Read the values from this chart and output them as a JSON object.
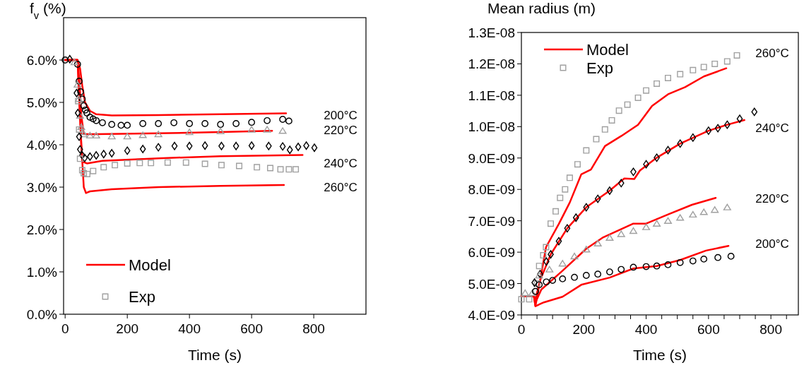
{
  "chart_data": [
    {
      "type": "scatter",
      "ylabel": "f$_{v}$ (%)",
      "xlabel": "Time (s)",
      "xlim": [
        -5,
        968
      ],
      "ylim": [
        0,
        7
      ],
      "xticks": [
        0,
        200,
        400,
        600,
        800
      ],
      "yticks": [
        {
          "value": 0,
          "label": "0.0%"
        },
        {
          "value": 1,
          "label": "1.0%"
        },
        {
          "value": 2,
          "label": "2.0%"
        },
        {
          "value": 3,
          "label": "3.0%"
        },
        {
          "value": 4,
          "label": "4.0%"
        },
        {
          "value": 5,
          "label": "5.0%"
        },
        {
          "value": 6,
          "label": "6.0%"
        }
      ],
      "grid": false,
      "legend": "bottom left",
      "annotations": [
        "200°C",
        "220°C",
        "240°C",
        "260°C"
      ],
      "series": [
        {
          "type": "line",
          "name": "Model",
          "color": "#ff0000",
          "line_style": "solid",
          "x": [
            0,
            40,
            48,
            55,
            64,
            80,
            100,
            150,
            300,
            500,
            711
          ],
          "values": [
            6.0,
            6.0,
            5.8,
            5.4,
            5.0,
            4.8,
            4.72,
            4.69,
            4.7,
            4.72,
            4.74
          ]
        },
        {
          "type": "line",
          "color": "#ff0000",
          "line_style": "solid",
          "x": [
            0,
            40,
            46,
            52,
            60,
            100,
            300,
            500,
            666
          ],
          "values": [
            6.0,
            6.0,
            5.5,
            4.7,
            4.25,
            4.25,
            4.27,
            4.3,
            4.33
          ]
        },
        {
          "type": "line",
          "color": "#ff0000",
          "line_style": "solid",
          "x": [
            0,
            40,
            46,
            52,
            56,
            70,
            120,
            300,
            500,
            764
          ],
          "values": [
            6.0,
            6.0,
            5.0,
            4.0,
            3.6,
            3.56,
            3.62,
            3.68,
            3.73,
            3.76
          ]
        },
        {
          "type": "line",
          "color": "#ff0000",
          "line_style": "solid",
          "x": [
            0,
            40,
            46,
            52,
            60,
            67,
            80,
            150,
            300,
            500,
            704
          ],
          "values": [
            6.0,
            6.0,
            5.0,
            4.0,
            3.0,
            2.86,
            2.9,
            2.95,
            3.0,
            3.03,
            3.05
          ]
        },
        {
          "color": "#000000",
          "marker": "circle",
          "x": [
            0,
            40,
            45,
            50,
            55,
            60,
            65,
            70,
            80,
            90,
            100,
            120,
            150,
            180,
            200,
            250,
            300,
            350,
            400,
            450,
            500,
            550,
            600,
            650,
            700,
            720
          ],
          "values": [
            6.0,
            5.9,
            5.5,
            5.25,
            5.08,
            4.92,
            4.82,
            4.75,
            4.65,
            4.61,
            4.57,
            4.52,
            4.48,
            4.46,
            4.46,
            4.5,
            4.5,
            4.52,
            4.5,
            4.5,
            4.48,
            4.5,
            4.53,
            4.57,
            4.6,
            4.56
          ]
        },
        {
          "color": "#a0a0a0",
          "marker": "triangle",
          "x": [
            30,
            40,
            44,
            48,
            52,
            56,
            60,
            80,
            100,
            150,
            200,
            250,
            300,
            400,
            500,
            600,
            650,
            700
          ],
          "values": [
            5.95,
            5.42,
            5.08,
            4.69,
            4.42,
            4.3,
            4.25,
            4.22,
            4.22,
            4.2,
            4.2,
            4.23,
            4.25,
            4.3,
            4.32,
            4.36,
            4.36,
            4.33
          ]
        },
        {
          "color": "#000000",
          "marker": "diamond",
          "x": [
            15,
            37,
            41,
            45,
            48,
            55,
            63,
            80,
            100,
            124,
            150,
            200,
            250,
            300,
            352,
            400,
            450,
            503,
            550,
            600,
            655,
            700,
            723,
            750,
            776,
            802
          ],
          "values": [
            6.02,
            5.22,
            4.75,
            4.19,
            3.89,
            3.75,
            3.69,
            3.72,
            3.75,
            3.78,
            3.8,
            3.86,
            3.9,
            3.94,
            3.97,
            3.97,
            3.98,
            3.97,
            3.97,
            3.98,
            3.97,
            3.96,
            3.88,
            3.95,
            3.98,
            3.93
          ]
        },
        {
          "name": "Exp",
          "color": "#a0a0a0",
          "marker": "square",
          "x": [
            42,
            45,
            48,
            55,
            60,
            71,
            90,
            124,
            160,
            200,
            240,
            276,
            330,
            389,
            450,
            503,
            560,
            617,
            660,
            693,
            720,
            742
          ],
          "values": [
            5.03,
            4.36,
            3.67,
            3.4,
            3.33,
            3.31,
            3.38,
            3.47,
            3.52,
            3.56,
            3.57,
            3.57,
            3.58,
            3.58,
            3.55,
            3.52,
            3.5,
            3.47,
            3.45,
            3.42,
            3.42,
            3.42
          ]
        }
      ]
    },
    {
      "type": "scatter",
      "ylabel": "Mean radius (m)",
      "xlabel": "Time (s)",
      "xlim": [
        0,
        888
      ],
      "ylim": [
        4e-09,
        1.3e-08
      ],
      "xticks": [
        0,
        {
          "value": 50,
          "label": null
        },
        {
          "value": 100,
          "label": null
        },
        {
          "value": 150,
          "label": null
        },
        200,
        {
          "value": 250,
          "label": null
        },
        {
          "value": 300,
          "label": null
        },
        {
          "value": 350,
          "label": null
        },
        400,
        {
          "value": 450,
          "label": null
        },
        {
          "value": 500,
          "label": null
        },
        {
          "value": 550,
          "label": null
        },
        600,
        {
          "value": 650,
          "label": null
        },
        {
          "value": 700,
          "label": null
        },
        {
          "value": 750,
          "label": null
        },
        800,
        {
          "value": 850,
          "label": null
        }
      ],
      "yticks": [
        {
          "value": 4e-09,
          "label": "4.0E-09"
        },
        {
          "value": 5e-09,
          "label": "5.0E-09"
        },
        {
          "value": 6e-09,
          "label": "6.0E-09"
        },
        {
          "value": 7e-09,
          "label": "7.0E-09"
        },
        {
          "value": 8e-09,
          "label": "8.0E-09"
        },
        {
          "value": 9e-09,
          "label": "9.0E-09"
        },
        {
          "value": 1e-08,
          "label": "1.0E-08"
        },
        {
          "value": 1.1e-08,
          "label": "1.1E-08"
        },
        {
          "value": 1.2e-08,
          "label": "1.2E-08"
        },
        {
          "value": 1.3e-08,
          "label": "1.3E-08"
        }
      ],
      "grid": false,
      "legend": "top left",
      "annotations": [
        "260°C",
        "240°C",
        "220°C",
        "200°C"
      ],
      "series": [
        {
          "type": "line",
          "name": "Model",
          "color": "#ff0000",
          "line_style": "solid",
          "x": [
            0,
            40,
            45,
            60,
            79,
            120,
            155,
            192,
            223,
            268,
            320,
            374,
            419,
            472,
            525,
            585,
            657
          ],
          "values": [
            4.6e-09,
            4.6e-09,
            4.28e-09,
            5.1e-09,
            6.16e-09,
            6.9e-09,
            7.58e-09,
            8.48e-09,
            8.63e-09,
            9.38e-09,
            9.7e-09,
            1.006e-08,
            1.066e-08,
            1.104e-08,
            1.126e-08,
            1.16e-08,
            1.186e-08
          ]
        },
        {
          "type": "line",
          "color": "#ff0000",
          "line_style": "solid",
          "x": [
            0,
            40,
            45,
            60,
            94,
            147,
            208,
            283,
            330,
            362,
            380,
            434,
            509,
            600,
            660,
            715
          ],
          "values": [
            4.6e-09,
            4.6e-09,
            4.5e-09,
            5.1e-09,
            5.93e-09,
            6.76e-09,
            7.43e-09,
            7.96e-09,
            8.35e-09,
            8.33e-09,
            8.6e-09,
            9.01e-09,
            9.46e-09,
            9.87e-09,
            1.006e-08,
            1.021e-08
          ]
        },
        {
          "type": "line",
          "color": "#ff0000",
          "line_style": "solid",
          "x": [
            0,
            40,
            45,
            64,
            132,
            208,
            260,
            359,
            400,
            472,
            547,
            623
          ],
          "values": [
            4.6e-09,
            4.6e-09,
            4.4e-09,
            4.81e-09,
            5.41e-09,
            6.11e-09,
            6.46e-09,
            6.91e-09,
            6.91e-09,
            7.21e-09,
            7.51e-09,
            7.73e-09
          ]
        },
        {
          "type": "line",
          "color": "#ff0000",
          "line_style": "solid",
          "x": [
            0,
            40,
            45,
            72,
            132,
            192,
            283,
            359,
            434,
            509,
            592,
            664
          ],
          "values": [
            4.6e-09,
            4.6e-09,
            4.28e-09,
            4.4e-09,
            4.58e-09,
            4.96e-09,
            5.19e-09,
            5.48e-09,
            5.56e-09,
            5.75e-09,
            6.05e-09,
            6.2e-09
          ]
        },
        {
          "name": "Exp",
          "color": "#a0a0a0",
          "marker": "square",
          "x": [
            0,
            25,
            50,
            57,
            70,
            79,
            94,
            110,
            124,
            140,
            155,
            180,
            208,
            240,
            268,
            290,
            313,
            340,
            374,
            400,
            434,
            470,
            509,
            550,
            585,
            620,
            660,
            691
          ],
          "values": [
            4.5e-09,
            4.5e-09,
            5e-09,
            5.56e-09,
            5.9e-09,
            6.16e-09,
            6.91e-09,
            7.3e-09,
            7.73e-09,
            8e-09,
            8.37e-09,
            8.8e-09,
            9.24e-09,
            9.6e-09,
            9.91e-09,
            1.02e-08,
            1.051e-08,
            1.07e-08,
            1.092e-08,
            1.115e-08,
            1.137e-08,
            1.155e-08,
            1.167e-08,
            1.18e-08,
            1.19e-08,
            1.2e-08,
            1.208e-08,
            1.227e-08
          ]
        },
        {
          "color": "#000000",
          "marker": "diamond",
          "x": [
            42,
            60,
            80,
            94,
            120,
            147,
            175,
            208,
            245,
            283,
            320,
            359,
            400,
            434,
            470,
            509,
            550,
            600,
            630,
            660,
            700,
            747
          ],
          "values": [
            5.03e-09,
            5.3e-09,
            5.7e-09,
            5.93e-09,
            6.35e-09,
            6.76e-09,
            7.1e-09,
            7.43e-09,
            7.7e-09,
            7.96e-09,
            8.2e-09,
            8.56e-09,
            8.8e-09,
            9.01e-09,
            9.25e-09,
            9.46e-09,
            9.65e-09,
            9.87e-09,
            9.95e-09,
            1.006e-08,
            1.025e-08,
            1.047e-08
          ]
        },
        {
          "color": "#a0a0a0",
          "marker": "triangle",
          "x": [
            12,
            35,
            57,
            90,
            132,
            170,
            208,
            245,
            283,
            320,
            359,
            400,
            434,
            470,
            509,
            550,
            585,
            620,
            660
          ],
          "values": [
            4.7e-09,
            4.7e-09,
            5.26e-09,
            5.45e-09,
            5.64e-09,
            5.87e-09,
            6.09e-09,
            6.28e-09,
            6.46e-09,
            6.58e-09,
            6.68e-09,
            6.8e-09,
            6.91e-09,
            7e-09,
            7.1e-09,
            7.2e-09,
            7.28e-09,
            7.35e-09,
            7.43e-09
          ]
        },
        {
          "color": "#000000",
          "marker": "circle",
          "x": [
            45,
            57,
            80,
            100,
            132,
            170,
            208,
            245,
            283,
            320,
            359,
            400,
            434,
            470,
            509,
            550,
            585,
            630,
            672
          ],
          "values": [
            4.75e-09,
            4.96e-09,
            5.05e-09,
            5.1e-09,
            5.15e-09,
            5.2e-09,
            5.26e-09,
            5.3e-09,
            5.37e-09,
            5.45e-09,
            5.52e-09,
            5.54e-09,
            5.56e-09,
            5.6e-09,
            5.67e-09,
            5.72e-09,
            5.78e-09,
            5.83e-09,
            5.87e-09
          ]
        }
      ]
    }
  ]
}
